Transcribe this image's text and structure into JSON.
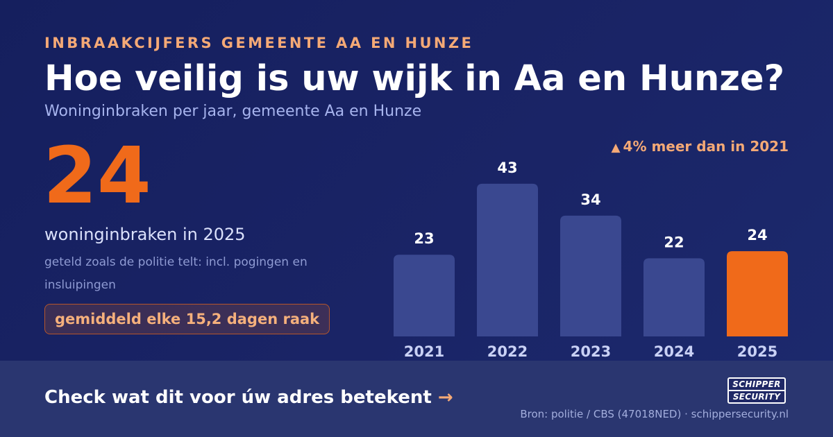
{
  "header": {
    "eyebrow": "INBRAAKCIJFERS GEMEENTE AA EN HUNZE",
    "title": "Hoe veilig is uw wijk in Aa en Hunze?",
    "subtitle": "Woninginbraken per jaar, gemeente Aa en Hunze"
  },
  "highlight": {
    "value": "24",
    "caption": "woninginbraken in 2025",
    "note": "geteld zoals de politie telt: incl. pogingen en insluipingen",
    "pill": "gemiddeld elke 15,2 dagen raak"
  },
  "change_label": "4% meer dan in 2021",
  "chart_data": {
    "type": "bar",
    "categories": [
      "2021",
      "2022",
      "2023",
      "2024",
      "2025"
    ],
    "values": [
      23,
      43,
      34,
      22,
      24
    ],
    "highlight_category": "2025",
    "colors": {
      "bar": "#3a4890",
      "highlight": "#f06a1a"
    },
    "grid": false,
    "legend": "none"
  },
  "footer": {
    "cta": "Check wat dit voor úw adres betekent",
    "cta_arrow": "→",
    "logo_line1": "SCHIPPER",
    "logo_line2": "SECURITY",
    "source": "Bron: politie / CBS (47018NED) · schippersecurity.nl"
  },
  "icons": {
    "change": "triangle-up-icon",
    "cta": "arrow-right-icon"
  }
}
